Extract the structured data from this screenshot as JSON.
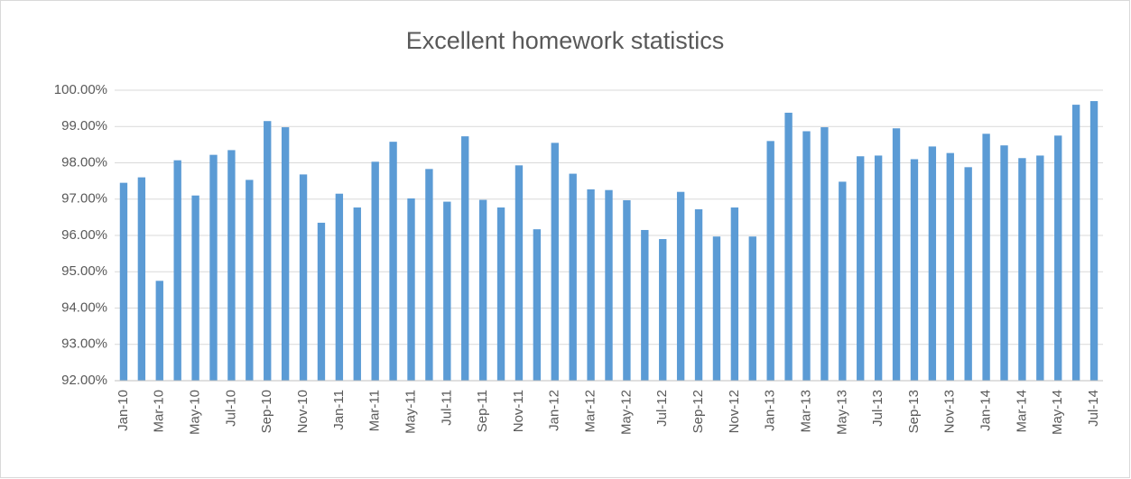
{
  "chart_data": {
    "type": "bar",
    "title": "Excellent homework statistics",
    "categories": [
      "Jan-10",
      null,
      "Mar-10",
      null,
      "May-10",
      null,
      "Jul-10",
      null,
      "Sep-10",
      null,
      "Nov-10",
      null,
      "Jan-11",
      null,
      "Mar-11",
      null,
      "May-11",
      null,
      "Jul-11",
      null,
      "Sep-11",
      null,
      "Nov-11",
      null,
      "Jan-12",
      null,
      "Mar-12",
      null,
      "May-12",
      null,
      "Jul-12",
      null,
      "Sep-12",
      null,
      "Nov-12",
      null,
      "Jan-13",
      null,
      "Mar-13",
      null,
      "May-13",
      null,
      "Jul-13",
      null,
      "Sep-13",
      null,
      "Nov-13",
      null,
      "Jan-14",
      null,
      "Mar-14",
      null,
      "May-14",
      null,
      "Jul-14"
    ],
    "values": [
      97.45,
      97.6,
      94.75,
      98.07,
      97.1,
      98.22,
      98.35,
      97.53,
      99.15,
      98.98,
      97.68,
      96.35,
      97.15,
      96.77,
      98.03,
      98.58,
      97.02,
      97.83,
      96.93,
      98.73,
      96.98,
      96.77,
      97.93,
      96.17,
      98.55,
      97.7,
      97.27,
      97.25,
      96.97,
      96.15,
      95.9,
      97.2,
      96.72,
      95.97,
      96.77,
      95.97,
      98.6,
      99.38,
      98.87,
      98.98,
      97.48,
      98.18,
      98.2,
      98.95,
      98.1,
      98.45,
      98.27,
      97.88,
      98.8,
      98.48,
      98.13,
      98.2,
      98.75,
      99.6,
      99.7
    ],
    "color": "#5b9bd5",
    "ylim": [
      92,
      100
    ],
    "yticks": [
      {
        "value": 92,
        "label": "92.00%"
      },
      {
        "value": 93,
        "label": "93.00%"
      },
      {
        "value": 94,
        "label": "94.00%"
      },
      {
        "value": 95,
        "label": "95.00%"
      },
      {
        "value": 96,
        "label": "96.00%"
      },
      {
        "value": 97,
        "label": "97.00%"
      },
      {
        "value": 98,
        "label": "98.00%"
      },
      {
        "value": 99,
        "label": "99.00%"
      },
      {
        "value": 100,
        "label": "100.00%"
      }
    ],
    "grid": true
  }
}
